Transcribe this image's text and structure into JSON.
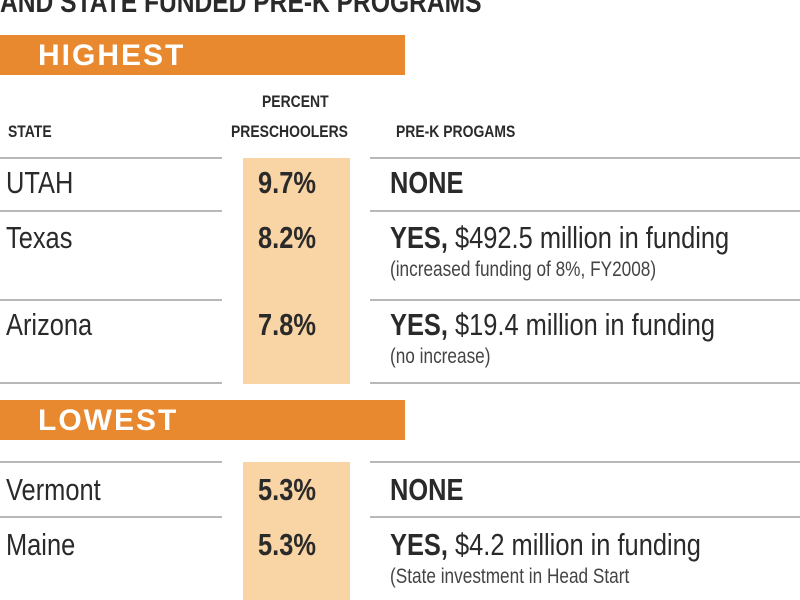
{
  "title": "AND STATE FUNDED PRE-K PROGRAMS",
  "headers": {
    "state": "STATE",
    "percent": [
      "PERCENT",
      "PRESCHOOLERS"
    ],
    "programs": "PRE-K PROGAMS"
  },
  "sections": [
    {
      "label": "HIGHEST",
      "rows": [
        {
          "state": "UTAH",
          "percent": "9.7%",
          "status": "NONE"
        },
        {
          "state": "Texas",
          "percent": "8.2%",
          "status": "YES,",
          "detail": "$492.5 million in funding",
          "note": "(increased funding of 8%, FY2008)"
        },
        {
          "state": "Arizona",
          "percent": "7.8%",
          "status": "YES,",
          "detail": "$19.4 million in funding",
          "note": "(no increase)"
        }
      ]
    },
    {
      "label": "LOWEST",
      "rows": [
        {
          "state": "Vermont",
          "percent": "5.3%",
          "status": "NONE"
        },
        {
          "state": "Maine",
          "percent": "5.3%",
          "status": "YES,",
          "detail": "$4.2 million in funding",
          "note": "(State investment in Head Start"
        }
      ]
    }
  ]
}
